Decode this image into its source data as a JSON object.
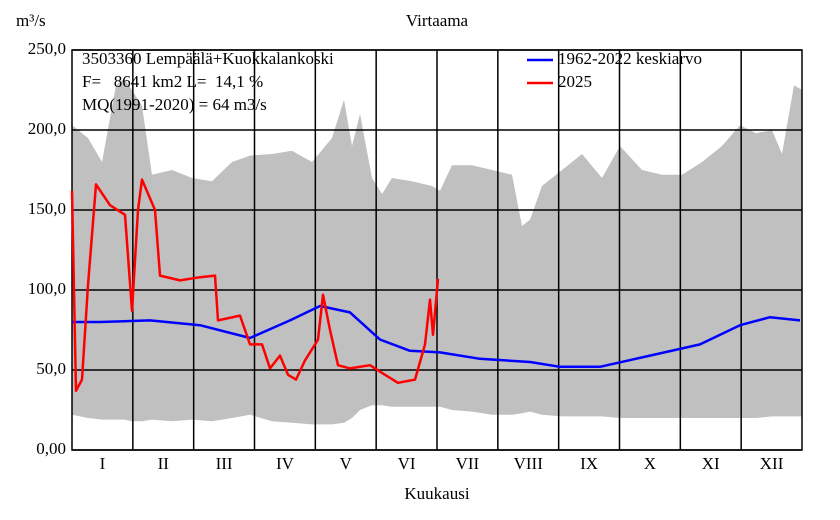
{
  "chart_data": {
    "type": "line",
    "title": "Virtaama",
    "y_label": "m³/s",
    "x_label": "Kuukausi",
    "annotations": [
      "3503360 Lempäälä+Kuokkalankoski",
      "F=   8641 km2 L=  14,1 %",
      "MQ(1991-2020) = 64 m3/s"
    ],
    "categories": [
      "I",
      "II",
      "III",
      "IV",
      "V",
      "VI",
      "VII",
      "VIII",
      "IX",
      "X",
      "XI",
      "XII"
    ],
    "xlim": [
      0,
      365
    ],
    "ylim": [
      0,
      250
    ],
    "yticks": [
      {
        "value": 0,
        "label": "0,00"
      },
      {
        "value": 50,
        "label": "50,0"
      },
      {
        "value": 100,
        "label": "100,0"
      },
      {
        "value": 150,
        "label": "150,0"
      },
      {
        "value": 200,
        "label": "200,0"
      },
      {
        "value": 250,
        "label": "250,0"
      }
    ],
    "grid": true,
    "legend": "top-right",
    "band": {
      "color": "#c0c0c0",
      "x": [
        0,
        8,
        15,
        22,
        26,
        30,
        35,
        40,
        50,
        60,
        70,
        80,
        89,
        100,
        110,
        120,
        130,
        136,
        140,
        144,
        150,
        155,
        160,
        170,
        180,
        184,
        190,
        200,
        210,
        220,
        225,
        229,
        235,
        245,
        255,
        265,
        274,
        285,
        295,
        305,
        315,
        325,
        334,
        342,
        350,
        355,
        361,
        365
      ],
      "upper": [
        203,
        195,
        180,
        228,
        232,
        225,
        215,
        172,
        175,
        170,
        168,
        180,
        184,
        185,
        187,
        180,
        195,
        219,
        190,
        210,
        170,
        160,
        170,
        168,
        165,
        162,
        178,
        178,
        175,
        172,
        140,
        144,
        165,
        175,
        185,
        170,
        190,
        175,
        172,
        172,
        180,
        190,
        203,
        198,
        200,
        185,
        228,
        225
      ],
      "lower": [
        22,
        20,
        19,
        19,
        19,
        18,
        18,
        19,
        18,
        19,
        18,
        20,
        22,
        18,
        17,
        16,
        16,
        17,
        20,
        25,
        28,
        28,
        27,
        27,
        27,
        27,
        25,
        24,
        22,
        22,
        23,
        24,
        22,
        21,
        21,
        21,
        20,
        20,
        20,
        20,
        20,
        20,
        20,
        20,
        21,
        21,
        21,
        21
      ]
    },
    "series": [
      {
        "name": "1962-2022 keskiarvo",
        "color": "#0000ff",
        "x": [
          0,
          14,
          39,
          64,
          89,
          109,
          124,
          139,
          154,
          169,
          184,
          204,
          229,
          244,
          264,
          289,
          314,
          334,
          349,
          364
        ],
        "values": [
          80,
          80,
          81,
          78,
          70,
          81,
          90,
          86,
          69,
          62,
          61,
          57,
          55,
          52,
          52,
          59,
          66,
          78,
          83,
          81
        ]
      },
      {
        "name": "2025",
        "color": "#ff0000",
        "x": [
          0,
          2,
          5,
          8,
          12,
          19,
          26.5,
          30,
          33,
          35,
          41.5,
          44,
          54,
          64,
          71.5,
          73,
          84,
          89,
          95,
          99,
          104,
          108,
          112,
          116.5,
          123,
          125.5,
          129,
          133,
          139,
          149,
          156.5,
          163,
          171.5,
          176.5,
          179,
          180.5,
          183
        ],
        "values": [
          162,
          37,
          44,
          103,
          166,
          153,
          147,
          87,
          150,
          169,
          150,
          109,
          106,
          108,
          109,
          81,
          84,
          66,
          66,
          51,
          59,
          47,
          44,
          56,
          69,
          97,
          75,
          53,
          51,
          53,
          47,
          42,
          44,
          66,
          94,
          72,
          107
        ]
      }
    ]
  }
}
